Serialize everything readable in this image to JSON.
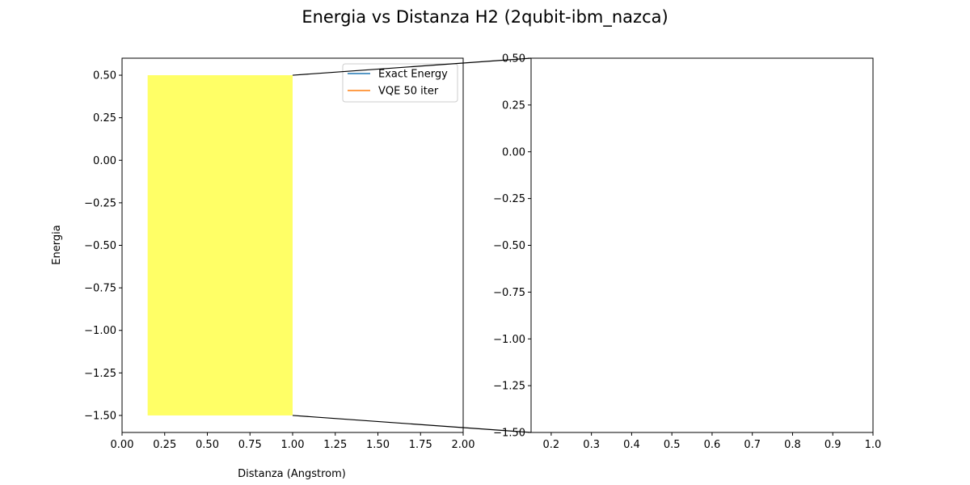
{
  "figure": {
    "title": "Energia vs Distanza H2 (2qubit-ibm_nazca)"
  },
  "colors": {
    "exact": "#1f77b4",
    "vqe": "#ff7f0e",
    "highlight": "#ffff66",
    "axis": "#000000"
  },
  "chart_data": [
    {
      "type": "line",
      "title": "",
      "xlabel": "Distanza (Angstrom)",
      "ylabel": "Energia",
      "xlim": [
        0.0,
        2.0
      ],
      "ylim": [
        -1.6,
        0.6
      ],
      "xticks": [
        "0.00",
        "0.25",
        "0.50",
        "0.75",
        "1.00",
        "1.25",
        "1.50",
        "1.75",
        "2.00"
      ],
      "yticks": [
        "0.50",
        "0.25",
        "0.00",
        "−0.25",
        "−0.50",
        "−0.75",
        "−1.00",
        "−1.25",
        "−1.50"
      ],
      "xtick_values": [
        0.0,
        0.25,
        0.5,
        0.75,
        1.0,
        1.25,
        1.5,
        1.75,
        2.0
      ],
      "ytick_values": [
        0.5,
        0.25,
        0.0,
        -0.25,
        -0.5,
        -0.75,
        -1.0,
        -1.25,
        -1.5
      ],
      "series": [
        {
          "name": "Exact Energy",
          "x": [],
          "y": []
        },
        {
          "name": "VQE 50 iter",
          "x": [],
          "y": []
        }
      ],
      "highlight_region": {
        "x": [
          0.15,
          1.0
        ],
        "y": [
          -1.5,
          0.5
        ]
      },
      "legend": "upper-right",
      "grid": false
    },
    {
      "type": "line",
      "title": "",
      "xlabel": "",
      "ylabel": "",
      "xlim": [
        0.15,
        1.0
      ],
      "ylim": [
        -1.5,
        0.5
      ],
      "xticks": [
        "0.2",
        "0.3",
        "0.4",
        "0.5",
        "0.6",
        "0.7",
        "0.8",
        "0.9",
        "1.0"
      ],
      "yticks": [
        "0.50",
        "0.25",
        "0.00",
        "−0.25",
        "−0.50",
        "−0.75",
        "−1.00",
        "−1.25",
        "−1.50"
      ],
      "xtick_values": [
        0.2,
        0.3,
        0.4,
        0.5,
        0.6,
        0.7,
        0.8,
        0.9,
        1.0
      ],
      "ytick_values": [
        0.5,
        0.25,
        0.0,
        -0.25,
        -0.5,
        -0.75,
        -1.0,
        -1.25,
        -1.5
      ],
      "series": [],
      "grid": false
    }
  ]
}
